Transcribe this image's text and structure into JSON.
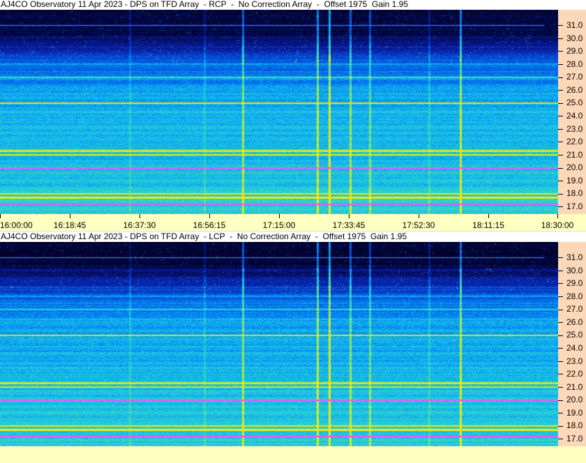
{
  "panels": [
    {
      "title": "AJ4CO Observatory 11 Apr 2023 - DPS on TFD Array  - RCP  -  No Correction Array  -  Offset 1975  Gain 1.95",
      "polarization": "RCP",
      "time_axis": true
    },
    {
      "title": "AJ4CO Observatory 11 Apr 2023 - DPS on TFD Array  - LCP  -  No Correction Array  -  Offset 1975  Gain 1.95",
      "polarization": "LCP",
      "time_axis": false
    }
  ],
  "y_ticks": [
    "31.0",
    "30.0",
    "29.0",
    "28.0",
    "27.0",
    "26.0",
    "25.0",
    "24.0",
    "23.0",
    "22.0",
    "21.0",
    "20.0",
    "19.0",
    "18.0",
    "17.0"
  ],
  "x_ticks": [
    "16:00:00",
    "16:18:45",
    "16:37:30",
    "16:56:15",
    "17:15:00",
    "17:33:45",
    "17:52:30",
    "18:11:15",
    "18:30:00"
  ],
  "colors": {
    "axis_bg": "#fcd8b8",
    "time_bg": "#ffffc0",
    "plot_low": "#000020",
    "plot_high": "#ffff00",
    "strong_line": "#ff40ff"
  }
}
